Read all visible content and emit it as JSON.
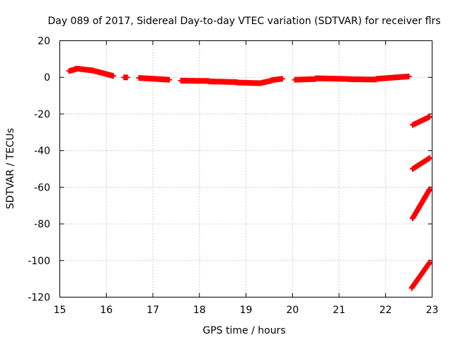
{
  "chart_data": {
    "type": "scatter",
    "title": "Day 089 of 2017, Sidereal Day-to-day VTEC variation (SDTVAR) for receiver flrs",
    "xlabel": "GPS time / hours",
    "ylabel": "SDTVAR / TECUs",
    "xlim": [
      15,
      23
    ],
    "ylim": [
      -120,
      20
    ],
    "xticks": [
      15,
      16,
      17,
      18,
      19,
      20,
      21,
      22,
      23
    ],
    "yticks": [
      20,
      0,
      -20,
      -40,
      -60,
      -80,
      -100,
      -120
    ],
    "grid": true,
    "marker": "+",
    "series": [
      {
        "name": "SDTVAR",
        "color": "#ff0000",
        "segments": [
          {
            "x0": 15.2,
            "x1": 15.35,
            "y0": 3.5,
            "y1": 4.5
          },
          {
            "x0": 15.35,
            "x1": 15.7,
            "y0": 4.8,
            "y1": 3.8
          },
          {
            "x0": 15.7,
            "x1": 16.15,
            "y0": 3.8,
            "y1": 0.8
          },
          {
            "x0": 16.38,
            "x1": 16.45,
            "y0": 0,
            "y1": 0
          },
          {
            "x0": 16.7,
            "x1": 17.35,
            "y0": -0.3,
            "y1": -1.3
          },
          {
            "x0": 17.6,
            "x1": 18.2,
            "y0": -1.8,
            "y1": -2.0
          },
          {
            "x0": 18.2,
            "x1": 18.8,
            "y0": -2.2,
            "y1": -2.6
          },
          {
            "x0": 18.8,
            "x1": 19.3,
            "y0": -2.8,
            "y1": -3.2
          },
          {
            "x0": 19.3,
            "x1": 19.55,
            "y0": -3.2,
            "y1": -1.8
          },
          {
            "x0": 19.55,
            "x1": 19.78,
            "y0": -1.5,
            "y1": -0.8
          },
          {
            "x0": 20.05,
            "x1": 20.5,
            "y0": -1.3,
            "y1": -0.9
          },
          {
            "x0": 20.5,
            "x1": 21.2,
            "y0": -0.5,
            "y1": -0.9
          },
          {
            "x0": 21.2,
            "x1": 21.8,
            "y0": -1.0,
            "y1": -1.2
          },
          {
            "x0": 21.8,
            "x1": 22.5,
            "y0": -0.8,
            "y1": 0.5
          },
          {
            "x0": 22.58,
            "x1": 22.95,
            "y0": -26,
            "y1": -21.5
          },
          {
            "x0": 22.58,
            "x1": 22.95,
            "y0": -50,
            "y1": -44
          },
          {
            "x0": 22.58,
            "x1": 22.95,
            "y0": -77,
            "y1": -61
          },
          {
            "x0": 22.56,
            "x1": 22.95,
            "y0": -115,
            "y1": -101
          }
        ]
      }
    ]
  }
}
